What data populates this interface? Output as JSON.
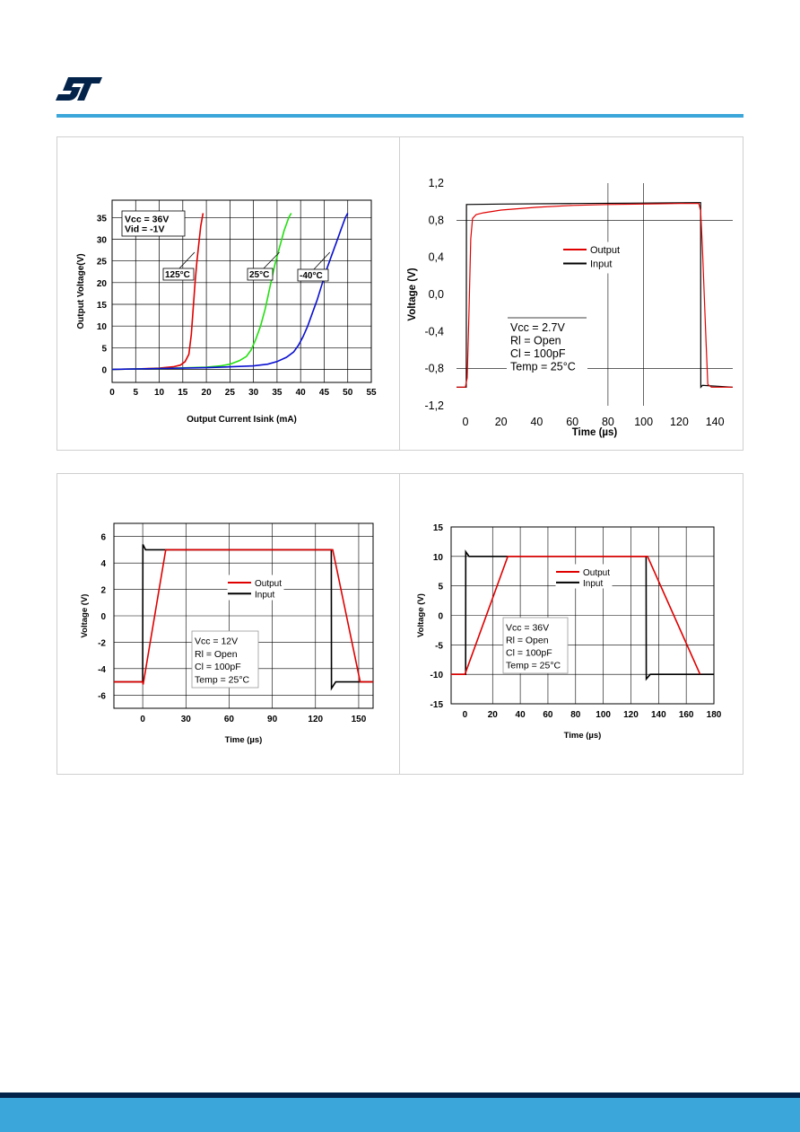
{
  "logo": {
    "name": "st-logo",
    "color": "#03234b"
  },
  "colors": {
    "header_rule": "#3aa6d9",
    "footer_dark": "#03234b",
    "footer_blue": "#3aa6d9"
  },
  "chart_data": [
    {
      "type": "line",
      "title": "",
      "xlabel": "Output Current Isink (mA)",
      "ylabel": "Output Voltage(V)",
      "xlim": [
        0,
        55
      ],
      "ylim": [
        -3,
        39
      ],
      "xticks": [
        0,
        5,
        10,
        15,
        20,
        25,
        30,
        35,
        40,
        45,
        50,
        55
      ],
      "yticks": [
        0,
        5,
        10,
        15,
        20,
        25,
        30,
        35
      ],
      "grid": true,
      "annotation_box": [
        "Vcc = 36V",
        "Vid  = -1V"
      ],
      "series": [
        {
          "name": "125°C",
          "color": "#e00000",
          "points": [
            [
              0,
              0
            ],
            [
              5,
              0.1
            ],
            [
              10,
              0.3
            ],
            [
              13,
              0.6
            ],
            [
              14.5,
              1
            ],
            [
              15.5,
              1.8
            ],
            [
              16.3,
              3.5
            ],
            [
              16.8,
              8
            ],
            [
              17.2,
              14
            ],
            [
              17.6,
              20
            ],
            [
              18,
              25
            ],
            [
              18.4,
              29
            ],
            [
              18.8,
              33
            ],
            [
              19.3,
              36
            ]
          ]
        },
        {
          "name": "25°C",
          "color": "#22e010",
          "points": [
            [
              0,
              0
            ],
            [
              10,
              0.2
            ],
            [
              20,
              0.5
            ],
            [
              23,
              0.8
            ],
            [
              25,
              1.2
            ],
            [
              27,
              2
            ],
            [
              28.5,
              3
            ],
            [
              29.5,
              4.5
            ],
            [
              30.5,
              7
            ],
            [
              31.5,
              10
            ],
            [
              32.5,
              14
            ],
            [
              33.5,
              19
            ],
            [
              34.5,
              24
            ],
            [
              35.5,
              28
            ],
            [
              36.5,
              32
            ],
            [
              37.5,
              35
            ],
            [
              38,
              36
            ]
          ]
        },
        {
          "name": "-40°C",
          "color": "#0a10d0",
          "points": [
            [
              0,
              0
            ],
            [
              10,
              0.2
            ],
            [
              20,
              0.4
            ],
            [
              30,
              0.8
            ],
            [
              33,
              1.2
            ],
            [
              35,
              1.8
            ],
            [
              37,
              2.8
            ],
            [
              38.5,
              4
            ],
            [
              39.5,
              5.5
            ],
            [
              40.5,
              7.5
            ],
            [
              41.5,
              10
            ],
            [
              42.5,
              13
            ],
            [
              43.5,
              16
            ],
            [
              44.5,
              19.5
            ],
            [
              45.5,
              23
            ],
            [
              46.5,
              26
            ],
            [
              47.5,
              29
            ],
            [
              48.5,
              32
            ],
            [
              49.5,
              35
            ],
            [
              50,
              36
            ]
          ]
        }
      ],
      "labels": [
        "125°C",
        "25°C",
        "-40°C"
      ]
    },
    {
      "type": "line",
      "title": "",
      "xlabel": "Time (µs)",
      "ylabel": "Voltage (V)",
      "xlim": [
        -5,
        150
      ],
      "ylim": [
        -1.2,
        1.2
      ],
      "xticks": [
        0,
        20,
        40,
        60,
        80,
        100,
        120,
        140
      ],
      "xtick_labels": [
        "0",
        "20",
        "40",
        "60",
        "80",
        "100",
        "120",
        "140"
      ],
      "yticks": [
        -1.2,
        -0.8,
        -0.4,
        0.0,
        0.4,
        0.8,
        1.2
      ],
      "ytick_labels": [
        "-1,2",
        "-0,8",
        "-0,4",
        "0,0",
        "0,4",
        "0,8",
        "1,2"
      ],
      "legend": [
        "Output",
        "Input"
      ],
      "annotation_box": [
        "Vcc = 2.7V",
        "Rl = Open",
        "Cl = 100pF",
        "Temp = 25°C"
      ],
      "series": [
        {
          "name": "Output",
          "color": "#e00000",
          "points": [
            [
              -5,
              -1.0
            ],
            [
              0,
              -1.0
            ],
            [
              1,
              -0.9
            ],
            [
              2,
              -0.2
            ],
            [
              3,
              0.6
            ],
            [
              4,
              0.82
            ],
            [
              6,
              0.86
            ],
            [
              10,
              0.88
            ],
            [
              20,
              0.91
            ],
            [
              40,
              0.94
            ],
            [
              60,
              0.96
            ],
            [
              80,
              0.97
            ],
            [
              100,
              0.975
            ],
            [
              120,
              0.98
            ],
            [
              131,
              0.98
            ],
            [
              132,
              0.9
            ],
            [
              133,
              0.5
            ],
            [
              134,
              0
            ],
            [
              135,
              -0.5
            ],
            [
              136,
              -0.97
            ],
            [
              138,
              -1.0
            ],
            [
              150,
              -1.0
            ]
          ]
        },
        {
          "name": "Input",
          "color": "#000000",
          "points": [
            [
              -5,
              -1.0
            ],
            [
              0.5,
              -1.0
            ],
            [
              0.6,
              0.97
            ],
            [
              20,
              0.975
            ],
            [
              60,
              0.98
            ],
            [
              100,
              0.985
            ],
            [
              131,
              0.99
            ],
            [
              132,
              0.99
            ],
            [
              132.1,
              -1.0
            ],
            [
              133,
              -0.98
            ],
            [
              150,
              -1.0
            ]
          ]
        }
      ]
    },
    {
      "type": "line",
      "title": "",
      "xlabel": "Time (µs)",
      "ylabel": "Voltage (V)",
      "xlim": [
        -20,
        160
      ],
      "ylim": [
        -7,
        7
      ],
      "xticks": [
        0,
        30,
        60,
        90,
        120,
        150
      ],
      "yticks": [
        -6,
        -4,
        -2,
        0,
        2,
        4,
        6
      ],
      "legend": [
        "Output",
        "Input"
      ],
      "annotation_box": [
        "Vcc = 12V",
        "Rl = Open",
        "Cl = 100pF",
        "Temp = 25°C"
      ],
      "series": [
        {
          "name": "Output",
          "color": "#e00000",
          "points": [
            [
              -20,
              -5.0
            ],
            [
              0,
              -5.0
            ],
            [
              0.3,
              -5.2
            ],
            [
              16,
              5.0
            ],
            [
              60,
              5.0
            ],
            [
              100,
              5.0
            ],
            [
              132,
              5.0
            ],
            [
              151,
              -5.0
            ],
            [
              160,
              -5.0
            ]
          ]
        },
        {
          "name": "Input",
          "color": "#000000",
          "points": [
            [
              -20,
              -5.0
            ],
            [
              0,
              -5.0
            ],
            [
              0.1,
              5.4
            ],
            [
              2,
              5.0
            ],
            [
              60,
              5.0
            ],
            [
              131,
              5.0
            ],
            [
              131.1,
              -5.5
            ],
            [
              134,
              -5.0
            ],
            [
              160,
              -5.0
            ]
          ]
        }
      ]
    },
    {
      "type": "line",
      "title": "",
      "xlabel": "Time (µs)",
      "ylabel": "Voltage (V)",
      "xlim": [
        -10,
        180
      ],
      "ylim": [
        -15,
        15
      ],
      "xticks": [
        0,
        20,
        40,
        60,
        80,
        100,
        120,
        140,
        160,
        180
      ],
      "yticks": [
        -15,
        -10,
        -5,
        0,
        5,
        10,
        15
      ],
      "legend": [
        "Output",
        "Input"
      ],
      "annotation_box": [
        "Vcc = 36V",
        "Rl = Open",
        "Cl = 100pF",
        "Temp = 25°C"
      ],
      "series": [
        {
          "name": "Output",
          "color": "#e00000",
          "points": [
            [
              -10,
              -10
            ],
            [
              0,
              -10
            ],
            [
              31,
              10
            ],
            [
              60,
              10
            ],
            [
              100,
              10
            ],
            [
              132,
              10
            ],
            [
              170,
              -10
            ]
          ]
        },
        {
          "name": "Input",
          "color": "#000000",
          "points": [
            [
              -10,
              -10
            ],
            [
              0.5,
              -10
            ],
            [
              0.6,
              10.8
            ],
            [
              3,
              10
            ],
            [
              60,
              10
            ],
            [
              131,
              10
            ],
            [
              131.1,
              -10.8
            ],
            [
              134,
              -10
            ],
            [
              180,
              -10
            ]
          ]
        }
      ]
    }
  ]
}
